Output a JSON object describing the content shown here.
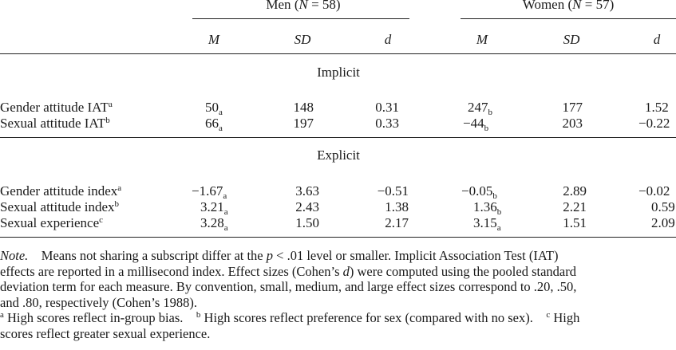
{
  "groups": {
    "men": {
      "label": "Men",
      "n_label": "N",
      "n_text": " = 58"
    },
    "women": {
      "label": "Women",
      "n_label": "N",
      "n_text": " = 57"
    }
  },
  "columns": {
    "m": "M",
    "sd": "SD",
    "d": "d"
  },
  "sections": {
    "implicit": "Implicit",
    "explicit": "Explicit"
  },
  "rows": [
    {
      "label": "Gender attitude IAT",
      "label_sup": "a",
      "men": {
        "m": "50",
        "m_sub": "a",
        "sd": "148",
        "d": "0.31"
      },
      "women": {
        "m": "247",
        "m_sub": "b",
        "sd": "177",
        "d": "1.52"
      }
    },
    {
      "label": "Sexual attitude IAT",
      "label_sup": "b",
      "men": {
        "m": "66",
        "m_sub": "a",
        "sd": "197",
        "d": "0.33"
      },
      "women": {
        "m": "−44",
        "m_sub": "b",
        "sd": "203",
        "d": "−0.22"
      }
    },
    {
      "label": "Gender attitude index",
      "label_sup": "a",
      "men": {
        "m": "−1.67",
        "m_sub": "a",
        "sd": "3.63",
        "d": "−0.51"
      },
      "women": {
        "m": "−0.05",
        "m_sub": "b",
        "sd": "2.89",
        "d": "−0.02"
      }
    },
    {
      "label": "Sexual attitude index",
      "label_sup": "b",
      "men": {
        "m": "3.21",
        "m_sub": "a",
        "sd": "2.43",
        "d": "1.38"
      },
      "women": {
        "m": "1.36",
        "m_sub": "b",
        "sd": "2.21",
        "d": "0.59"
      }
    },
    {
      "label": "Sexual experience",
      "label_sup": "c",
      "men": {
        "m": "3.28",
        "m_sub": "a",
        "sd": "1.50",
        "d": "2.17"
      },
      "women": {
        "m": "3.15",
        "m_sub": "a",
        "sd": "1.51",
        "d": "2.09"
      }
    }
  ],
  "note": {
    "label": "Note.",
    "line1_a": "Means not sharing a subscript differ at the ",
    "line1_p": "p",
    "line1_b": " < .01 level or smaller. Implicit Association Test (IAT)",
    "line2_a": "effects are reported in a millisecond index. Effect sizes (Cohen’s ",
    "line2_d": "d",
    "line2_b": ") were computed using the pooled standard",
    "line3": "deviation term for each measure. By convention, small, medium, and large effect sizes correspond to .20, .50,",
    "line4": "and .80, respectively (Cohen’s 1988).",
    "fn_a_mark": "a",
    "fn_a": " High scores reflect in-group bias.",
    "fn_b_mark": "b",
    "fn_b": " High scores reflect preference for sex (compared with no sex).",
    "fn_c_mark": "c",
    "fn_c_line1": " High",
    "fn_c_line2": "scores reflect greater sexual experience."
  }
}
